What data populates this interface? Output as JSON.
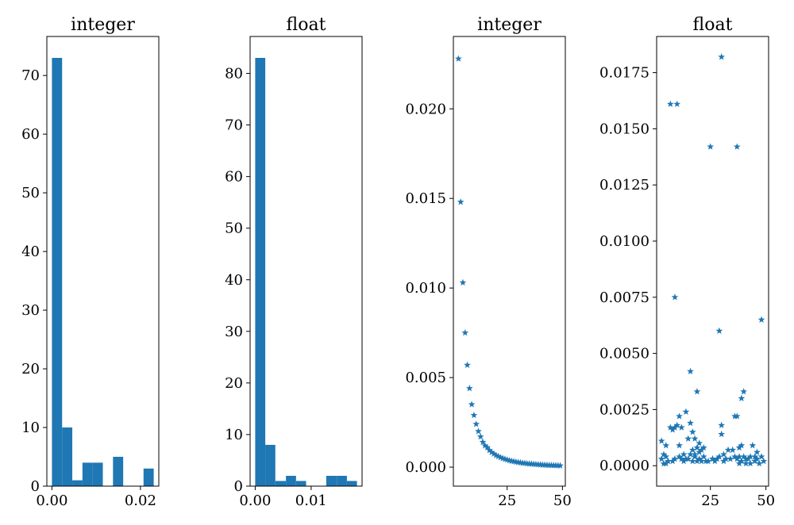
{
  "chart_data": [
    {
      "type": "bar",
      "subtype": "histogram",
      "title": "integer",
      "xlabel": "",
      "ylabel": "",
      "bins": [
        {
          "x0": 0.0,
          "x1": 0.0023,
          "count": 73
        },
        {
          "x0": 0.0023,
          "x1": 0.0046,
          "count": 10
        },
        {
          "x0": 0.0046,
          "x1": 0.0069,
          "count": 1
        },
        {
          "x0": 0.0069,
          "x1": 0.0092,
          "count": 4
        },
        {
          "x0": 0.0092,
          "x1": 0.0115,
          "count": 4
        },
        {
          "x0": 0.0115,
          "x1": 0.0138,
          "count": 0
        },
        {
          "x0": 0.0138,
          "x1": 0.0161,
          "count": 5
        },
        {
          "x0": 0.0161,
          "x1": 0.0184,
          "count": 0
        },
        {
          "x0": 0.0184,
          "x1": 0.0207,
          "count": 0
        },
        {
          "x0": 0.0207,
          "x1": 0.023,
          "count": 3
        }
      ],
      "xlim": [
        -0.00115,
        0.02415
      ],
      "ylim": [
        0,
        76.65
      ],
      "xticks": [
        {
          "value": 0.0,
          "label": "0.00"
        },
        {
          "value": 0.02,
          "label": "0.02"
        }
      ],
      "yticks": [
        {
          "value": 0,
          "label": "0"
        },
        {
          "value": 10,
          "label": "10"
        },
        {
          "value": 20,
          "label": "20"
        },
        {
          "value": 30,
          "label": "30"
        },
        {
          "value": 40,
          "label": "40"
        },
        {
          "value": 50,
          "label": "50"
        },
        {
          "value": 60,
          "label": "60"
        },
        {
          "value": 70,
          "label": "70"
        }
      ],
      "color": "#1f77b4",
      "grid": false
    },
    {
      "type": "bar",
      "subtype": "histogram",
      "title": "float",
      "xlabel": "",
      "ylabel": "",
      "bins": [
        {
          "x0": 0.0,
          "x1": 0.0018,
          "count": 83
        },
        {
          "x0": 0.0018,
          "x1": 0.0036,
          "count": 8
        },
        {
          "x0": 0.0036,
          "x1": 0.0055,
          "count": 1
        },
        {
          "x0": 0.0055,
          "x1": 0.0073,
          "count": 2
        },
        {
          "x0": 0.0073,
          "x1": 0.0091,
          "count": 1
        },
        {
          "x0": 0.0091,
          "x1": 0.0109,
          "count": 0
        },
        {
          "x0": 0.0109,
          "x1": 0.0127,
          "count": 0
        },
        {
          "x0": 0.0127,
          "x1": 0.0146,
          "count": 2
        },
        {
          "x0": 0.0146,
          "x1": 0.0164,
          "count": 2
        },
        {
          "x0": 0.0164,
          "x1": 0.0182,
          "count": 1
        }
      ],
      "xlim": [
        -0.00091,
        0.01911
      ],
      "ylim": [
        0,
        87.15
      ],
      "xticks": [
        {
          "value": 0.0,
          "label": "0.00"
        },
        {
          "value": 0.01,
          "label": "0.01"
        }
      ],
      "yticks": [
        {
          "value": 0,
          "label": "0"
        },
        {
          "value": 10,
          "label": "10"
        },
        {
          "value": 20,
          "label": "20"
        },
        {
          "value": 30,
          "label": "30"
        },
        {
          "value": 40,
          "label": "40"
        },
        {
          "value": 50,
          "label": "50"
        },
        {
          "value": 60,
          "label": "60"
        },
        {
          "value": 70,
          "label": "70"
        },
        {
          "value": 80,
          "label": "80"
        }
      ],
      "color": "#1f77b4",
      "grid": false
    },
    {
      "type": "scatter",
      "title": "integer",
      "xlabel": "",
      "ylabel": "",
      "marker": "*",
      "x": [
        3,
        4,
        5,
        6,
        7,
        8,
        9,
        10,
        11,
        12,
        13,
        14,
        15,
        16,
        17,
        18,
        19,
        20,
        21,
        22,
        23,
        24,
        25,
        26,
        27,
        28,
        29,
        30,
        31,
        32,
        33,
        34,
        35,
        36,
        37,
        38,
        39,
        40,
        41,
        42,
        43,
        44,
        45,
        46,
        47,
        48,
        49
      ],
      "y": [
        0.0228,
        0.0148,
        0.0103,
        0.0075,
        0.0057,
        0.0044,
        0.0035,
        0.0029,
        0.0024,
        0.002,
        0.0017,
        0.0014,
        0.0012,
        0.0011,
        0.00094,
        0.00083,
        0.00074,
        0.00066,
        0.0006,
        0.00054,
        0.00049,
        0.00045,
        0.00041,
        0.00037,
        0.00034,
        0.00032,
        0.00029,
        0.00027,
        0.00025,
        0.00023,
        0.00022,
        0.0002,
        0.00019,
        0.00018,
        0.00017,
        0.00016,
        0.00015,
        0.00014,
        0.00013,
        0.00012,
        0.000115,
        0.00011,
        0.000105,
        0.0001,
        9.5e-05,
        9e-05,
        8.5e-05
      ],
      "xlim": [
        0.7,
        51.3
      ],
      "ylim": [
        -0.00106,
        0.02404
      ],
      "xticks": [
        {
          "value": 25,
          "label": "25"
        },
        {
          "value": 50,
          "label": "50"
        }
      ],
      "yticks": [
        {
          "value": 0.0,
          "label": "0.000"
        },
        {
          "value": 0.005,
          "label": "0.005"
        },
        {
          "value": 0.01,
          "label": "0.010"
        },
        {
          "value": 0.015,
          "label": "0.015"
        },
        {
          "value": 0.02,
          "label": "0.020"
        }
      ],
      "color": "#1f77b4",
      "grid": false
    },
    {
      "type": "scatter",
      "title": "float",
      "xlabel": "",
      "ylabel": "",
      "marker": "*",
      "x": [
        3,
        3,
        4,
        4,
        5,
        5,
        5,
        6,
        7,
        7,
        8,
        8,
        9,
        9,
        9,
        10,
        10,
        11,
        11,
        11,
        12,
        12,
        13,
        13,
        14,
        14,
        15,
        15,
        16,
        16,
        16,
        17,
        17,
        17,
        18,
        18,
        18,
        19,
        19,
        19,
        20,
        20,
        20,
        21,
        21,
        22,
        22,
        23,
        24,
        25,
        26,
        26,
        27,
        28,
        29,
        29,
        30,
        30,
        30,
        31,
        31,
        32,
        33,
        34,
        35,
        36,
        36,
        37,
        37,
        37,
        38,
        38,
        38,
        39,
        39,
        39,
        40,
        40,
        41,
        41,
        42,
        43,
        43,
        44,
        45,
        45,
        46,
        46,
        47,
        48,
        48,
        49
      ],
      "y": [
        0.0011,
        0.0003,
        0.0005,
        9e-05,
        0.0009,
        0.0004,
        0.0001,
        0.0002,
        0.0161,
        0.0017,
        0.0002,
        0.0016,
        0.0003,
        0.0075,
        0.0017,
        0.0161,
        0.0018,
        0.0009,
        0.0004,
        0.0022,
        0.0017,
        0.0003,
        0.0005,
        0.0002,
        0.0024,
        0.0003,
        0.0003,
        0.0012,
        0.0005,
        0.0042,
        0.0019,
        0.0015,
        0.0002,
        0.0007,
        0.0004,
        0.0005,
        0.0012,
        0.0033,
        0.0008,
        0.0002,
        0.0006,
        0.001,
        0.0003,
        0.0002,
        0.0007,
        0.0004,
        0.0008,
        0.0002,
        0.0002,
        0.0142,
        0.0003,
        0.0003,
        0.0002,
        0.0003,
        0.006,
        0.0004,
        0.0182,
        0.0018,
        0.0014,
        0.0002,
        0.0005,
        0.0003,
        0.0007,
        0.0003,
        0.0007,
        0.0022,
        0.0004,
        0.0142,
        0.0022,
        0.0003,
        0.0008,
        0.0001,
        0.0004,
        0.003,
        0.0009,
        0.0002,
        0.0033,
        0.0004,
        0.0003,
        0.0001,
        0.0003,
        0.0001,
        0.0004,
        0.0009,
        0.0002,
        0.0004,
        0.0006,
        0.0003,
        0.0001,
        0.0065,
        0.0004,
        0.0002
      ],
      "xlim": [
        0.8,
        51.2
      ],
      "ylim": [
        -0.00091,
        0.01911
      ],
      "xticks": [
        {
          "value": 25,
          "label": "25"
        },
        {
          "value": 50,
          "label": "50"
        }
      ],
      "yticks": [
        {
          "value": 0.0,
          "label": "0.0000"
        },
        {
          "value": 0.0025,
          "label": "0.0025"
        },
        {
          "value": 0.005,
          "label": "0.0050"
        },
        {
          "value": 0.0075,
          "label": "0.0075"
        },
        {
          "value": 0.01,
          "label": "0.0100"
        },
        {
          "value": 0.0125,
          "label": "0.0125"
        },
        {
          "value": 0.015,
          "label": "0.0150"
        },
        {
          "value": 0.0175,
          "label": "0.0175"
        }
      ],
      "color": "#1f77b4",
      "grid": false
    }
  ]
}
